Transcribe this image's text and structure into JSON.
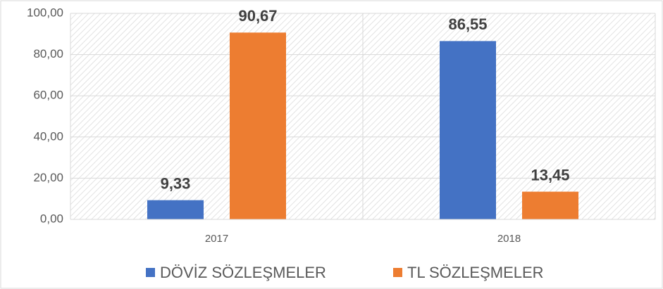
{
  "chart_data": {
    "type": "bar",
    "categories": [
      "2017",
      "2018"
    ],
    "series": [
      {
        "name": "DÖVİZ SÖZLEŞMELER",
        "color": "#4472c4",
        "values": [
          9.33,
          86.55
        ],
        "value_labels": [
          "9,33",
          "86,55"
        ]
      },
      {
        "name": "TL SÖZLEŞMELER",
        "color": "#ed7d31",
        "values": [
          90.67,
          13.45
        ],
        "value_labels": [
          "90,67",
          "13,45"
        ]
      }
    ],
    "ylim": [
      0,
      100
    ],
    "yticks": [
      {
        "value": 0,
        "label": "0,00"
      },
      {
        "value": 20,
        "label": "20,00"
      },
      {
        "value": 40,
        "label": "40,00"
      },
      {
        "value": 60,
        "label": "60,00"
      },
      {
        "value": 80,
        "label": "80,00"
      },
      {
        "value": 100,
        "label": "100,00"
      }
    ],
    "grid": true,
    "legend": "bottom"
  }
}
